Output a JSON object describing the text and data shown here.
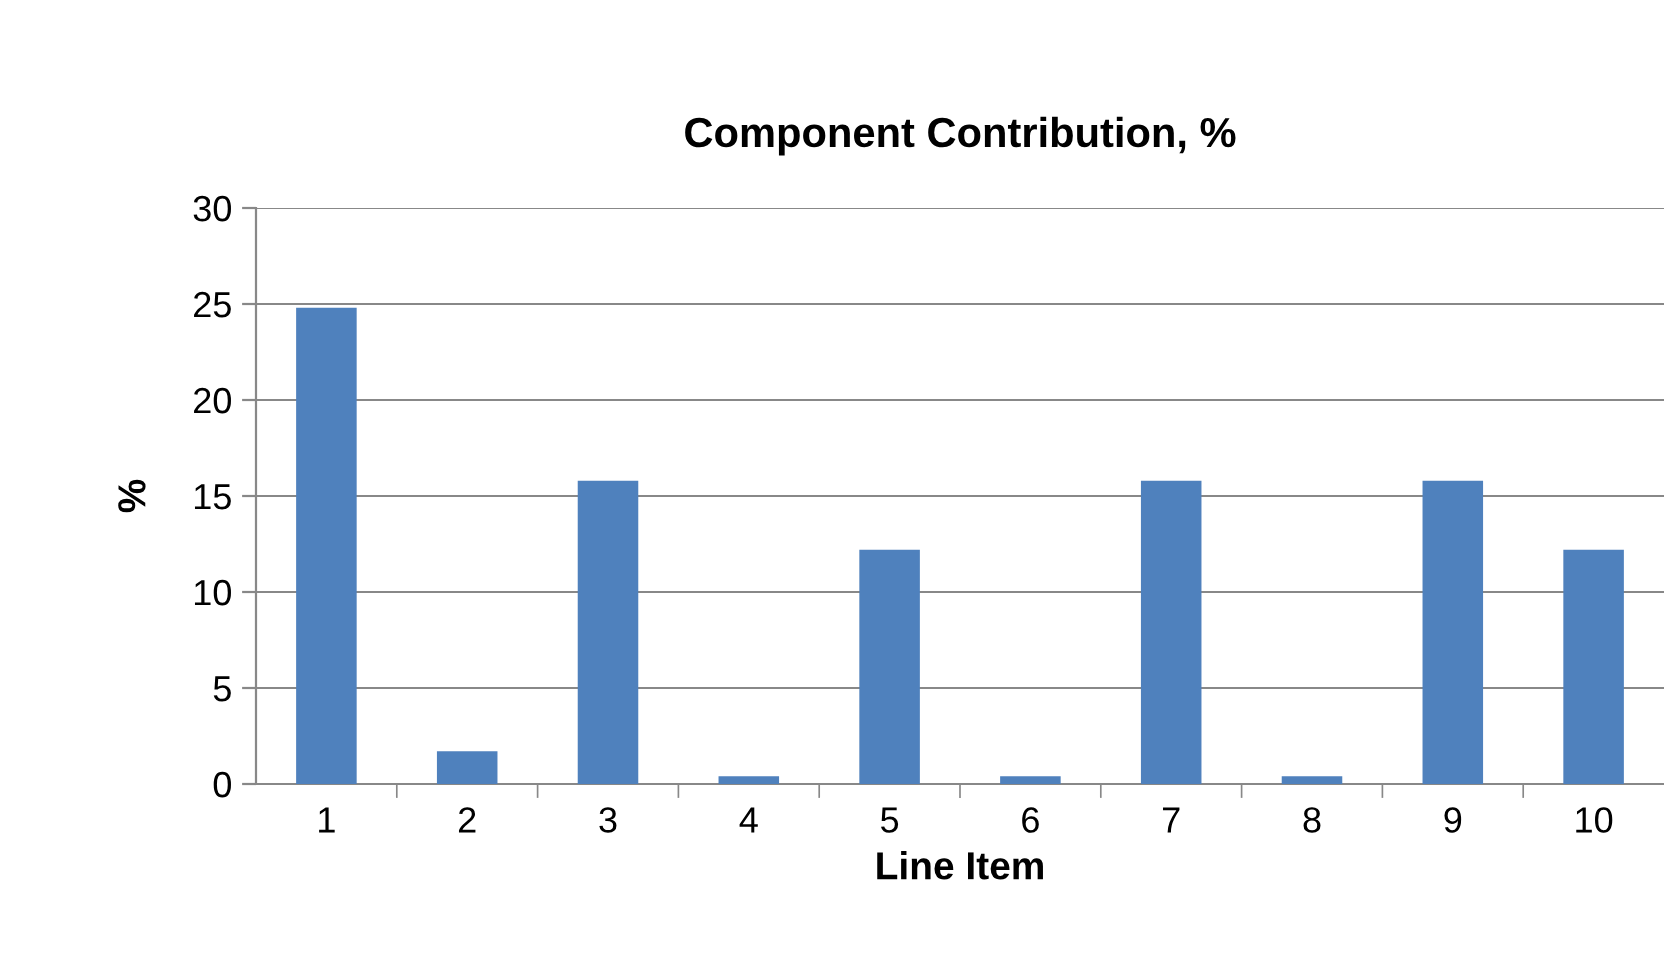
{
  "chart_data": {
    "type": "bar",
    "title": "Component Contribution, %",
    "xlabel": "Line Item",
    "ylabel": "%",
    "categories": [
      "1",
      "2",
      "3",
      "4",
      "5",
      "6",
      "7",
      "8",
      "9",
      "10"
    ],
    "values": [
      24.8,
      1.7,
      15.8,
      0.4,
      12.2,
      0.4,
      15.8,
      0.4,
      15.8,
      12.2
    ],
    "color": "#4f81bd",
    "ylim": [
      0,
      30
    ],
    "yticks": [
      0,
      5,
      10,
      15,
      20,
      25,
      30
    ],
    "grid": "y",
    "legend": false
  }
}
